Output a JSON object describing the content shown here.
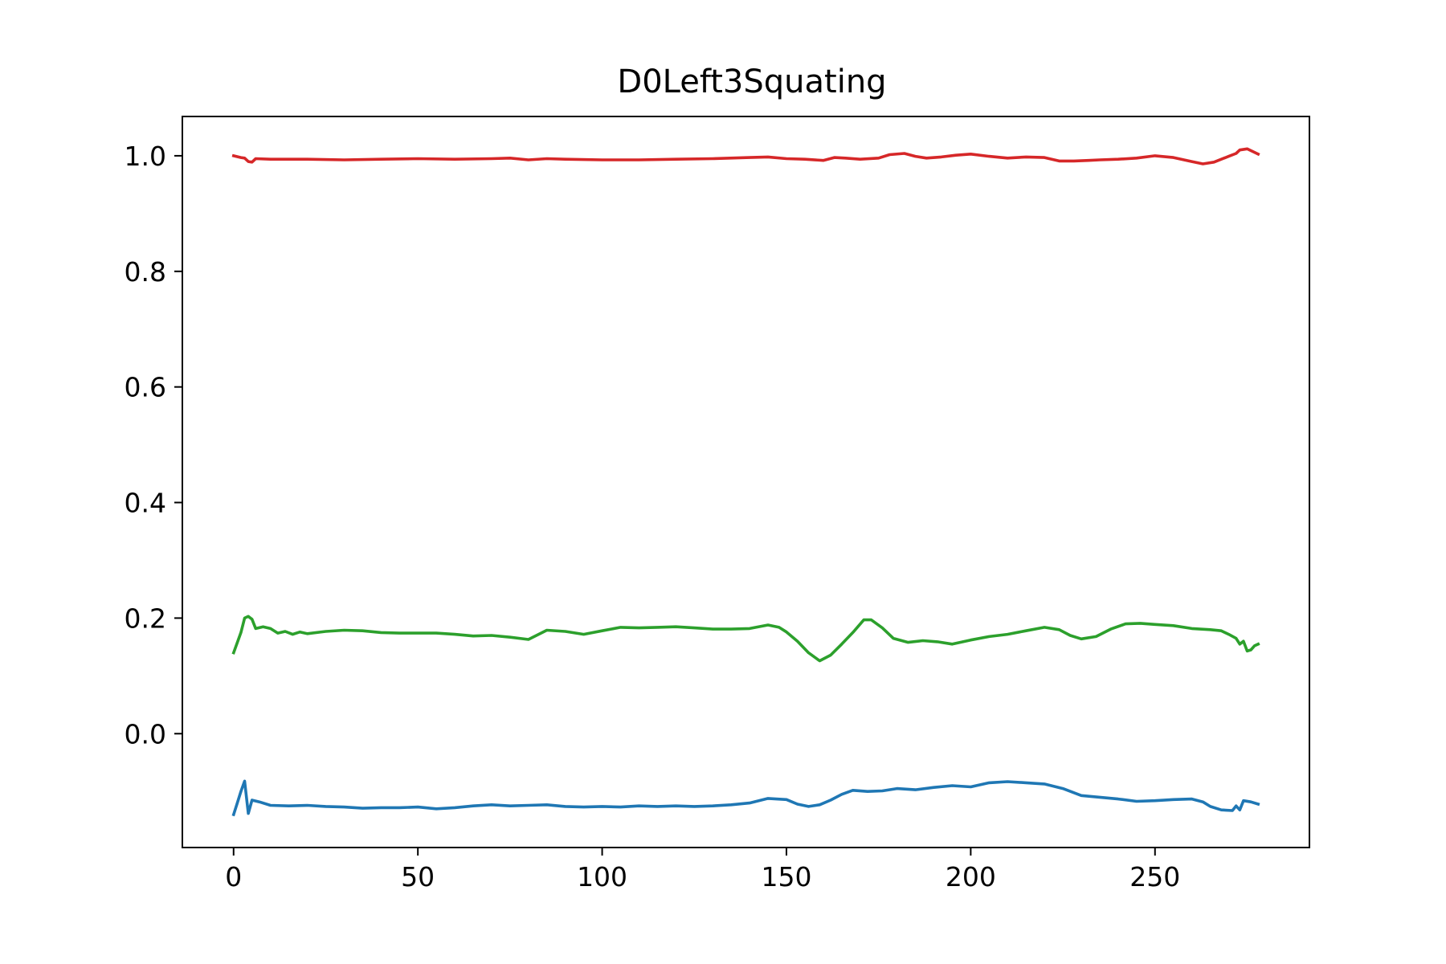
{
  "chart_data": {
    "type": "line",
    "title": "D0Left3Squating",
    "xlabel": "",
    "ylabel": "",
    "xlim": [
      -13.9,
      291.9
    ],
    "ylim": [
      -0.197,
      1.068
    ],
    "grid": false,
    "legend": "none",
    "x_ticks": [
      0,
      50,
      100,
      150,
      200,
      250
    ],
    "x_tick_labels": [
      "0",
      "50",
      "100",
      "150",
      "200",
      "250"
    ],
    "y_ticks": [
      0.0,
      0.2,
      0.4,
      0.6,
      0.8,
      1.0
    ],
    "y_tick_labels": [
      "0.0",
      "0.2",
      "0.4",
      "0.6",
      "0.8",
      "1.0"
    ],
    "series": [
      {
        "color": "#d62728",
        "points": [
          [
            0,
            1.0
          ],
          [
            2,
            0.997
          ],
          [
            3,
            0.996
          ],
          [
            4,
            0.99
          ],
          [
            5,
            0.989
          ],
          [
            6,
            0.995
          ],
          [
            10,
            0.994
          ],
          [
            20,
            0.994
          ],
          [
            30,
            0.993
          ],
          [
            40,
            0.994
          ],
          [
            50,
            0.995
          ],
          [
            60,
            0.994
          ],
          [
            70,
            0.995
          ],
          [
            75,
            0.996
          ],
          [
            80,
            0.993
          ],
          [
            85,
            0.995
          ],
          [
            90,
            0.994
          ],
          [
            100,
            0.993
          ],
          [
            110,
            0.993
          ],
          [
            120,
            0.994
          ],
          [
            130,
            0.995
          ],
          [
            140,
            0.997
          ],
          [
            145,
            0.998
          ],
          [
            150,
            0.995
          ],
          [
            155,
            0.994
          ],
          [
            160,
            0.992
          ],
          [
            163,
            0.997
          ],
          [
            166,
            0.996
          ],
          [
            170,
            0.994
          ],
          [
            175,
            0.996
          ],
          [
            178,
            1.002
          ],
          [
            182,
            1.004
          ],
          [
            185,
            0.999
          ],
          [
            188,
            0.996
          ],
          [
            192,
            0.998
          ],
          [
            196,
            1.001
          ],
          [
            200,
            1.003
          ],
          [
            205,
            0.999
          ],
          [
            210,
            0.996
          ],
          [
            215,
            0.998
          ],
          [
            220,
            0.997
          ],
          [
            224,
            0.991
          ],
          [
            228,
            0.991
          ],
          [
            232,
            0.992
          ],
          [
            235,
            0.993
          ],
          [
            240,
            0.994
          ],
          [
            245,
            0.996
          ],
          [
            250,
            1.0
          ],
          [
            255,
            0.997
          ],
          [
            260,
            0.99
          ],
          [
            263,
            0.986
          ],
          [
            266,
            0.989
          ],
          [
            270,
            0.999
          ],
          [
            272,
            1.004
          ],
          [
            273,
            1.01
          ],
          [
            275,
            1.012
          ],
          [
            277,
            1.006
          ],
          [
            278,
            1.003
          ]
        ]
      },
      {
        "color": "#2ca02c",
        "points": [
          [
            0,
            0.14
          ],
          [
            2,
            0.175
          ],
          [
            3,
            0.2
          ],
          [
            4,
            0.203
          ],
          [
            5,
            0.198
          ],
          [
            6,
            0.182
          ],
          [
            8,
            0.185
          ],
          [
            10,
            0.182
          ],
          [
            12,
            0.174
          ],
          [
            14,
            0.177
          ],
          [
            16,
            0.172
          ],
          [
            18,
            0.176
          ],
          [
            20,
            0.173
          ],
          [
            25,
            0.177
          ],
          [
            30,
            0.179
          ],
          [
            35,
            0.178
          ],
          [
            40,
            0.175
          ],
          [
            45,
            0.174
          ],
          [
            50,
            0.174
          ],
          [
            55,
            0.174
          ],
          [
            60,
            0.172
          ],
          [
            65,
            0.169
          ],
          [
            70,
            0.17
          ],
          [
            75,
            0.167
          ],
          [
            80,
            0.163
          ],
          [
            85,
            0.179
          ],
          [
            90,
            0.177
          ],
          [
            95,
            0.172
          ],
          [
            100,
            0.178
          ],
          [
            105,
            0.184
          ],
          [
            110,
            0.183
          ],
          [
            115,
            0.184
          ],
          [
            120,
            0.185
          ],
          [
            125,
            0.183
          ],
          [
            130,
            0.181
          ],
          [
            135,
            0.181
          ],
          [
            140,
            0.182
          ],
          [
            145,
            0.188
          ],
          [
            148,
            0.184
          ],
          [
            150,
            0.176
          ],
          [
            153,
            0.16
          ],
          [
            156,
            0.14
          ],
          [
            159,
            0.126
          ],
          [
            162,
            0.136
          ],
          [
            165,
            0.155
          ],
          [
            168,
            0.175
          ],
          [
            171,
            0.197
          ],
          [
            173,
            0.197
          ],
          [
            176,
            0.183
          ],
          [
            179,
            0.165
          ],
          [
            183,
            0.158
          ],
          [
            187,
            0.161
          ],
          [
            191,
            0.159
          ],
          [
            195,
            0.155
          ],
          [
            200,
            0.162
          ],
          [
            205,
            0.168
          ],
          [
            210,
            0.172
          ],
          [
            215,
            0.178
          ],
          [
            220,
            0.184
          ],
          [
            224,
            0.18
          ],
          [
            227,
            0.17
          ],
          [
            230,
            0.164
          ],
          [
            234,
            0.168
          ],
          [
            238,
            0.181
          ],
          [
            242,
            0.19
          ],
          [
            246,
            0.191
          ],
          [
            250,
            0.189
          ],
          [
            255,
            0.187
          ],
          [
            260,
            0.182
          ],
          [
            265,
            0.18
          ],
          [
            268,
            0.178
          ],
          [
            270,
            0.172
          ],
          [
            272,
            0.165
          ],
          [
            273,
            0.155
          ],
          [
            274,
            0.16
          ],
          [
            275,
            0.143
          ],
          [
            276,
            0.145
          ],
          [
            277,
            0.152
          ],
          [
            278,
            0.155
          ]
        ]
      },
      {
        "color": "#1f77b4",
        "points": [
          [
            0,
            -0.14
          ],
          [
            1,
            -0.12
          ],
          [
            2,
            -0.1
          ],
          [
            3,
            -0.082
          ],
          [
            4,
            -0.138
          ],
          [
            5,
            -0.115
          ],
          [
            7,
            -0.118
          ],
          [
            10,
            -0.124
          ],
          [
            15,
            -0.125
          ],
          [
            20,
            -0.124
          ],
          [
            25,
            -0.126
          ],
          [
            30,
            -0.127
          ],
          [
            35,
            -0.129
          ],
          [
            40,
            -0.128
          ],
          [
            45,
            -0.128
          ],
          [
            50,
            -0.127
          ],
          [
            55,
            -0.13
          ],
          [
            60,
            -0.128
          ],
          [
            65,
            -0.125
          ],
          [
            70,
            -0.123
          ],
          [
            75,
            -0.125
          ],
          [
            80,
            -0.124
          ],
          [
            85,
            -0.123
          ],
          [
            90,
            -0.126
          ],
          [
            95,
            -0.127
          ],
          [
            100,
            -0.126
          ],
          [
            105,
            -0.127
          ],
          [
            110,
            -0.125
          ],
          [
            115,
            -0.126
          ],
          [
            120,
            -0.125
          ],
          [
            125,
            -0.126
          ],
          [
            130,
            -0.125
          ],
          [
            135,
            -0.123
          ],
          [
            140,
            -0.12
          ],
          [
            145,
            -0.112
          ],
          [
            150,
            -0.114
          ],
          [
            153,
            -0.122
          ],
          [
            156,
            -0.126
          ],
          [
            159,
            -0.123
          ],
          [
            162,
            -0.115
          ],
          [
            165,
            -0.105
          ],
          [
            168,
            -0.098
          ],
          [
            172,
            -0.1
          ],
          [
            176,
            -0.099
          ],
          [
            180,
            -0.095
          ],
          [
            185,
            -0.097
          ],
          [
            190,
            -0.093
          ],
          [
            195,
            -0.09
          ],
          [
            200,
            -0.092
          ],
          [
            205,
            -0.085
          ],
          [
            210,
            -0.083
          ],
          [
            215,
            -0.085
          ],
          [
            220,
            -0.087
          ],
          [
            225,
            -0.095
          ],
          [
            230,
            -0.107
          ],
          [
            235,
            -0.11
          ],
          [
            240,
            -0.113
          ],
          [
            245,
            -0.117
          ],
          [
            250,
            -0.116
          ],
          [
            255,
            -0.114
          ],
          [
            260,
            -0.113
          ],
          [
            263,
            -0.118
          ],
          [
            265,
            -0.126
          ],
          [
            268,
            -0.132
          ],
          [
            271,
            -0.133
          ],
          [
            272,
            -0.125
          ],
          [
            273,
            -0.132
          ],
          [
            274,
            -0.116
          ],
          [
            276,
            -0.118
          ],
          [
            278,
            -0.122
          ]
        ]
      }
    ]
  }
}
